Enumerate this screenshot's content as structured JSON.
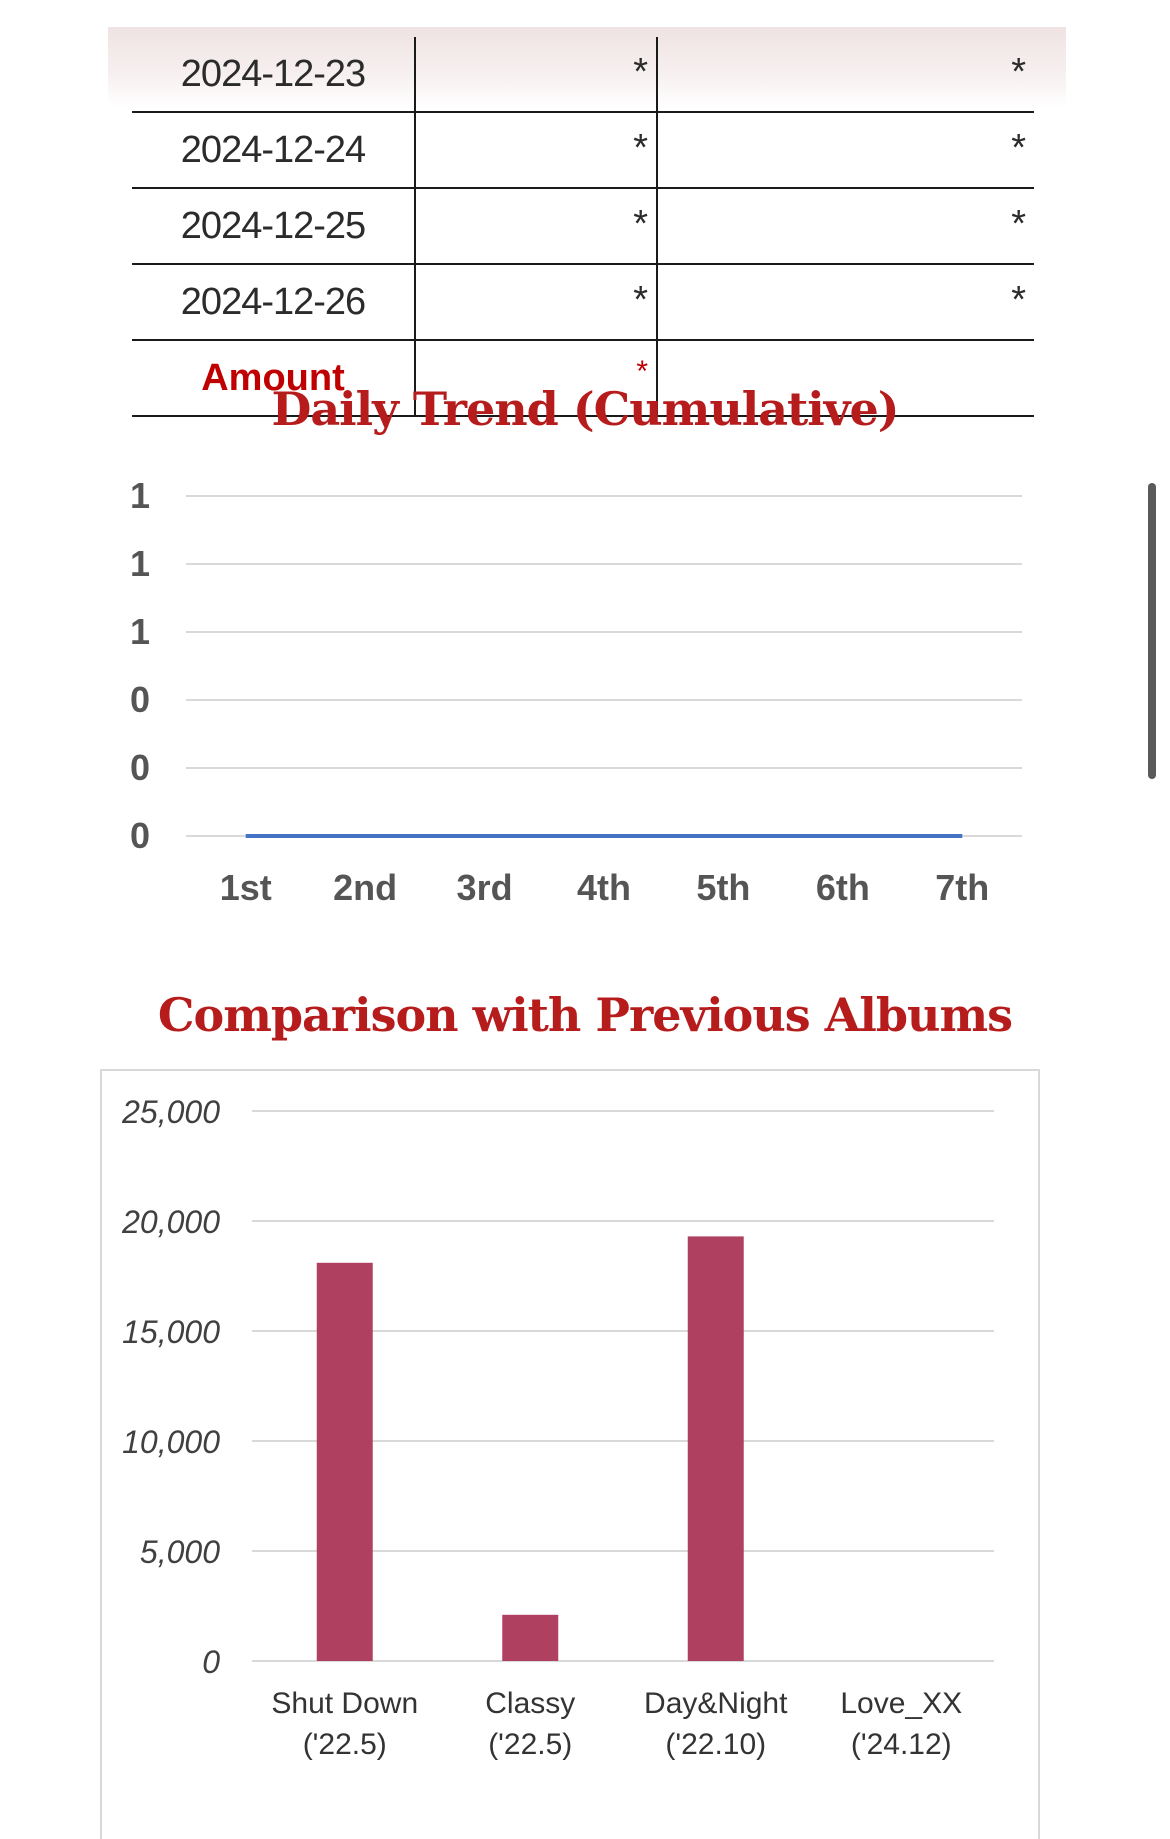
{
  "table": {
    "rows": [
      {
        "date": "2024-12-23",
        "col1": "*",
        "col2": "*"
      },
      {
        "date": "2024-12-24",
        "col1": "*",
        "col2": "*"
      },
      {
        "date": "2024-12-25",
        "col1": "*",
        "col2": "*"
      },
      {
        "date": "2024-12-26",
        "col1": "*",
        "col2": "*"
      }
    ],
    "total": {
      "label": "Amount",
      "col1": "*",
      "col2": ""
    }
  },
  "chart_data": [
    {
      "type": "line",
      "title": "Daily Trend (Cumulative)",
      "categories": [
        "1st",
        "2nd",
        "3rd",
        "4th",
        "5th",
        "6th",
        "7th"
      ],
      "y_tick_labels": [
        "0",
        "0",
        "0",
        "1",
        "1",
        "1"
      ],
      "series": [
        {
          "values": [
            0,
            0,
            0,
            0,
            0,
            0,
            0
          ],
          "color": "#4472c4"
        }
      ],
      "ylim": [
        0,
        1
      ],
      "grid": true
    },
    {
      "type": "bar",
      "title": "Comparison with Previous Albums",
      "categories": [
        {
          "line1": "Shut Down",
          "line2": "('22.5)"
        },
        {
          "line1": "Classy",
          "line2": "('22.5)"
        },
        {
          "line1": "Day&Night",
          "line2": "('22.10)"
        },
        {
          "line1": "Love_XX",
          "line2": "('24.12)"
        }
      ],
      "values": [
        18100,
        2100,
        19300,
        0
      ],
      "y_tick_labels": [
        "0",
        "5,000",
        "10,000",
        "15,000",
        "20,000",
        "25,000"
      ],
      "ylim": [
        0,
        25000
      ],
      "bar_color": "#b04060",
      "grid": true
    }
  ]
}
